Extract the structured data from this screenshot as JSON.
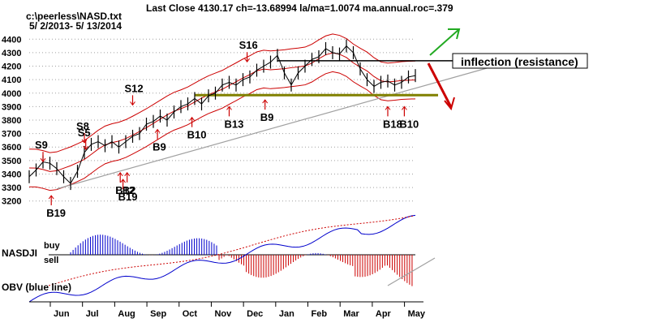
{
  "title": "Last Close 4130.17  ch=-13.68994  la/ma=1.0074  ma.annual.roc=.379",
  "file_label": "c:\\peerless\\NASD.txt",
  "date_range": "5/ 2/2013- 5/ 13/2014",
  "panel_labels": {
    "nasdji": "NASDJI",
    "buy": "buy",
    "sell": "sell",
    "obv": "OBV (blue line)"
  },
  "inflection_label": "inflection (resistance)",
  "colors": {
    "price": "#000000",
    "bands": "#cc0000",
    "support_line": "#808000",
    "trend_line": "#a0a0a0",
    "signal_arrow": "#cc0000",
    "up_arrow": "#22aa22",
    "indicator_blue": "#0000cc",
    "indicator_red": "#cc0000",
    "grid": "#a0a0a0"
  },
  "chart_data": {
    "type": "line",
    "title": "Last Close 4130.17  ch=-13.68994  la/ma=1.0074  ma.annual.roc=.379",
    "ylim": [
      3150,
      4450
    ],
    "y_ticks": [
      3200,
      3300,
      3400,
      3500,
      3600,
      3700,
      3800,
      3900,
      4000,
      4100,
      4200,
      4300,
      4400
    ],
    "months": [
      "Jun",
      "Jul",
      "Aug",
      "Sep",
      "Oct",
      "Nov",
      "Dec",
      "Jan",
      "Feb",
      "Mar",
      "Apr",
      "May"
    ],
    "grid": true,
    "series": [
      {
        "name": "close",
        "x": [
          0,
          5,
          10,
          15,
          20,
          25,
          30,
          35,
          40,
          45,
          50,
          55,
          60,
          65,
          70,
          75,
          80,
          85,
          90,
          95,
          100,
          105,
          110,
          115,
          120,
          125,
          130,
          135,
          140,
          145,
          150,
          155,
          160,
          165,
          170,
          175,
          180,
          185,
          190,
          195,
          200,
          205,
          210,
          215,
          220,
          225,
          230,
          235,
          240,
          245,
          250,
          255,
          260,
          265,
          270,
          275,
          280
        ],
        "values": [
          3380,
          3430,
          3490,
          3480,
          3440,
          3380,
          3330,
          3420,
          3560,
          3620,
          3640,
          3610,
          3640,
          3600,
          3640,
          3680,
          3700,
          3770,
          3790,
          3830,
          3800,
          3860,
          3900,
          3920,
          3960,
          3920,
          3980,
          4000,
          4060,
          4080,
          4060,
          4100,
          4120,
          4170,
          4200,
          4230,
          4280,
          4150,
          4060,
          4150,
          4200,
          4250,
          4270,
          4330,
          4300,
          4290,
          4350,
          4300,
          4180,
          4100,
          4050,
          4080,
          4090,
          4060,
          4080,
          4120,
          4130
        ]
      }
    ],
    "annotations": [
      {
        "text": "S9",
        "type": "sell",
        "x": 10,
        "y": 3480
      },
      {
        "text": "S8",
        "type": "sell",
        "x": 40,
        "y": 3620
      },
      {
        "text": "S5",
        "type": "sell",
        "x": 41,
        "y": 3570
      },
      {
        "text": "S12",
        "type": "sell",
        "x": 75,
        "y": 3900
      },
      {
        "text": "S16",
        "type": "sell",
        "x": 158,
        "y": 4220
      },
      {
        "text": "B19",
        "type": "buy",
        "x": 16,
        "y": 3240
      },
      {
        "text": "B12",
        "type": "buy",
        "x": 66,
        "y": 3410
      },
      {
        "text": "B2",
        "type": "buy",
        "x": 71,
        "y": 3410
      },
      {
        "text": "B19",
        "type": "buy",
        "x": 68,
        "y": 3360
      },
      {
        "text": "B9",
        "type": "buy",
        "x": 93,
        "y": 3730
      },
      {
        "text": "B10",
        "type": "buy",
        "x": 118,
        "y": 3820
      },
      {
        "text": "B13",
        "type": "buy",
        "x": 145,
        "y": 3900
      },
      {
        "text": "B9",
        "type": "buy",
        "x": 171,
        "y": 3950
      },
      {
        "text": "B18",
        "type": "buy",
        "x": 260,
        "y": 3900
      },
      {
        "text": "B10",
        "type": "buy",
        "x": 272,
        "y": 3900
      }
    ]
  }
}
